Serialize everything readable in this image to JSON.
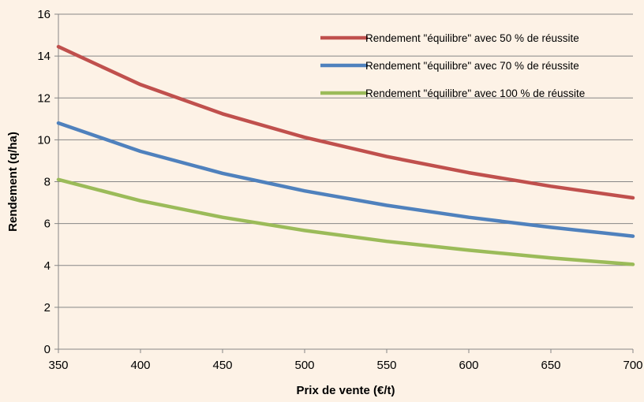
{
  "chart_data": {
    "type": "line",
    "title": "",
    "xlabel": "Prix de vente (€/t)",
    "ylabel": "Rendement (q/ha)",
    "xlim": [
      350,
      700
    ],
    "ylim": [
      0,
      16
    ],
    "x_ticks": [
      350,
      400,
      450,
      500,
      550,
      600,
      650,
      700
    ],
    "y_ticks": [
      0,
      2,
      4,
      6,
      8,
      10,
      12,
      14,
      16
    ],
    "grid": "horizontal",
    "legend_position": "top-right",
    "series": [
      {
        "name": "Rendement \"équilibre\" avec 50 % de réussite",
        "color": "#c0504d",
        "x": [
          350,
          400,
          450,
          500,
          550,
          600,
          650,
          700
        ],
        "y": [
          14.45,
          12.64,
          11.24,
          10.12,
          9.2,
          8.43,
          7.78,
          7.23
        ]
      },
      {
        "name": "Rendement \"équilibre\" avec 70 % de réussite",
        "color": "#4f81bd",
        "x": [
          350,
          400,
          450,
          500,
          550,
          600,
          650,
          700
        ],
        "y": [
          10.8,
          9.45,
          8.4,
          7.56,
          6.87,
          6.3,
          5.82,
          5.4
        ]
      },
      {
        "name": "Rendement \"équilibre\" avec 100 % de réussite",
        "color": "#9bbb59",
        "x": [
          350,
          400,
          450,
          500,
          550,
          600,
          650,
          700
        ],
        "y": [
          8.1,
          7.09,
          6.3,
          5.67,
          5.15,
          4.73,
          4.36,
          4.05
        ]
      }
    ]
  }
}
